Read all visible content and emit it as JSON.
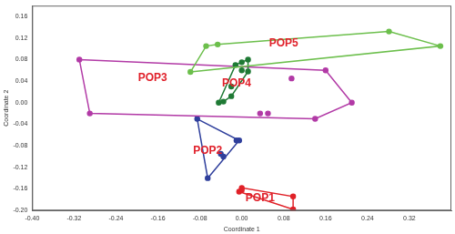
{
  "chart_data": {
    "type": "scatter",
    "x_label": "Coordinate 1",
    "y_label": "Coordinate 2",
    "xlim": [
      -0.4,
      0.4
    ],
    "xticks": [
      {
        "value": -0.4,
        "label": "-0.40"
      },
      -0.32,
      -0.24,
      -0.16,
      -0.08,
      {
        "value": 0,
        "label": "0.00"
      },
      0.08,
      0.16,
      0.24,
      0.32
    ],
    "ylim": [
      -0.2,
      0.18
    ],
    "yticks": [
      {
        "value": -0.2,
        "label": "-0.20"
      },
      -0.16,
      -0.12,
      -0.08,
      -0.04,
      {
        "value": 0,
        "label": "0.00"
      },
      0.04,
      0.08,
      0.12,
      0.16
    ],
    "grid": false,
    "series": [
      {
        "color": "#6cbf4c",
        "values": [
          [
            -0.098,
            0.057
          ],
          [
            -0.068,
            0.105
          ],
          [
            -0.046,
            0.108
          ],
          [
            0.281,
            0.132
          ],
          [
            0.379,
            0.105
          ]
        ]
      },
      {
        "color": "#1f7a35",
        "values": [
          [
            -0.044,
            0.0
          ],
          [
            -0.035,
            0.002
          ],
          [
            -0.02,
            0.012
          ],
          [
            -0.02,
            0.03
          ],
          [
            -0.012,
            0.07
          ],
          [
            0.0,
            0.075
          ],
          [
            0.0,
            0.06
          ],
          [
            0.012,
            0.08
          ],
          [
            0.012,
            0.058
          ]
        ]
      },
      {
        "color": "#b23aa6",
        "values": [
          [
            -0.31,
            0.08
          ],
          [
            0.16,
            0.06
          ],
          [
            0.21,
            0.0
          ],
          [
            0.14,
            -0.03
          ],
          [
            -0.29,
            -0.02
          ],
          [
            0.095,
            0.045
          ],
          [
            0.05,
            -0.02
          ],
          [
            0.035,
            -0.02
          ]
        ]
      },
      {
        "color": "#2f3f9c",
        "values": [
          [
            -0.085,
            -0.03
          ],
          [
            -0.005,
            -0.07
          ],
          [
            -0.065,
            -0.14
          ],
          [
            -0.04,
            -0.095
          ],
          [
            -0.035,
            -0.1
          ],
          [
            -0.01,
            -0.07
          ]
        ]
      },
      {
        "color": "#e02128",
        "values": [
          [
            -0.005,
            -0.165
          ],
          [
            0.0,
            -0.158
          ],
          [
            0.098,
            -0.174
          ],
          [
            0.098,
            -0.198
          ],
          [
            0.0,
            -0.162
          ]
        ]
      }
    ],
    "annotations": [
      {
        "text": "POP5",
        "x": 0.08,
        "y": 0.11
      },
      {
        "text": "POP4",
        "x": -0.01,
        "y": 0.035
      },
      {
        "text": "POP3",
        "x": -0.17,
        "y": 0.045
      },
      {
        "text": "POP2",
        "x": -0.065,
        "y": -0.09
      },
      {
        "text": "POP1",
        "x": 0.035,
        "y": -0.178
      }
    ]
  }
}
